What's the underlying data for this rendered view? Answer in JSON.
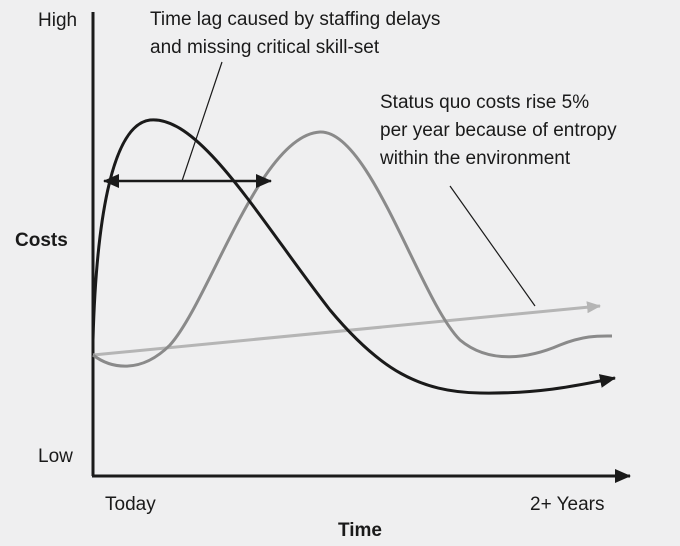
{
  "axis": {
    "y_label": "Costs",
    "y_high": "High",
    "y_low": "Low",
    "x_label": "Time",
    "x_start": "Today",
    "x_end": "2+ Years"
  },
  "annotations": [
    {
      "lines": [
        "Time lag caused by staffing delays",
        "and missing critical skill-set"
      ]
    },
    {
      "lines": [
        "Status quo costs rise 5%",
        "per year because of entropy",
        "within the environment"
      ]
    }
  ]
}
